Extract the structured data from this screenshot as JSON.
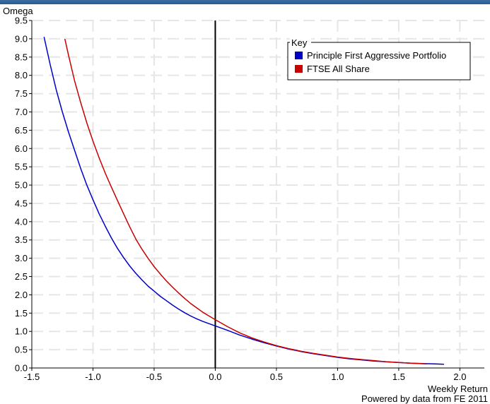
{
  "chart_data": {
    "type": "line",
    "xlabel": "Weekly Return",
    "ylabel": "Omega",
    "xlim": [
      -1.5,
      2.2
    ],
    "ylim": [
      0.0,
      9.5
    ],
    "x_ticks": [
      "-1.5",
      "-1.0",
      "-0.5",
      "0.0",
      "0.5",
      "1.0",
      "1.5",
      "2.0"
    ],
    "y_ticks": [
      "0.0",
      "0.5",
      "1.0",
      "1.5",
      "2.0",
      "2.5",
      "3.0",
      "3.5",
      "4.0",
      "4.5",
      "5.0",
      "5.5",
      "6.0",
      "6.5",
      "7.0",
      "7.5",
      "8.0",
      "8.5",
      "9.0",
      "9.5"
    ],
    "grid": true,
    "legend": {
      "title": "Key",
      "placement": "top-right"
    },
    "series": [
      {
        "name": "Principle First Aggressive Portfolio",
        "color": "#0000c8",
        "points": [
          [
            -1.4,
            9.05
          ],
          [
            -1.35,
            8.3
          ],
          [
            -1.3,
            7.6
          ],
          [
            -1.25,
            7.0
          ],
          [
            -1.2,
            6.45
          ],
          [
            -1.15,
            5.95
          ],
          [
            -1.1,
            5.45
          ],
          [
            -1.05,
            5.0
          ],
          [
            -1.0,
            4.6
          ],
          [
            -0.95,
            4.22
          ],
          [
            -0.9,
            3.88
          ],
          [
            -0.85,
            3.56
          ],
          [
            -0.8,
            3.27
          ],
          [
            -0.75,
            3.02
          ],
          [
            -0.7,
            2.79
          ],
          [
            -0.65,
            2.59
          ],
          [
            -0.6,
            2.41
          ],
          [
            -0.55,
            2.24
          ],
          [
            -0.5,
            2.1
          ],
          [
            -0.45,
            1.96
          ],
          [
            -0.4,
            1.84
          ],
          [
            -0.35,
            1.72
          ],
          [
            -0.3,
            1.61
          ],
          [
            -0.25,
            1.51
          ],
          [
            -0.2,
            1.42
          ],
          [
            -0.15,
            1.34
          ],
          [
            -0.1,
            1.27
          ],
          [
            -0.05,
            1.21
          ],
          [
            0.0,
            1.15
          ],
          [
            0.1,
            1.03
          ],
          [
            0.2,
            0.9
          ],
          [
            0.3,
            0.79
          ],
          [
            0.4,
            0.69
          ],
          [
            0.5,
            0.6
          ],
          [
            0.6,
            0.52
          ],
          [
            0.7,
            0.45
          ],
          [
            0.8,
            0.39
          ],
          [
            0.9,
            0.34
          ],
          [
            1.0,
            0.29
          ],
          [
            1.1,
            0.25
          ],
          [
            1.2,
            0.22
          ],
          [
            1.3,
            0.19
          ],
          [
            1.4,
            0.17
          ],
          [
            1.5,
            0.15
          ],
          [
            1.6,
            0.13
          ],
          [
            1.7,
            0.12
          ],
          [
            1.8,
            0.11
          ],
          [
            1.87,
            0.1
          ]
        ]
      },
      {
        "name": "FTSE All Share",
        "color": "#c80000",
        "points": [
          [
            -1.23,
            9.0
          ],
          [
            -1.2,
            8.55
          ],
          [
            -1.15,
            7.85
          ],
          [
            -1.1,
            7.25
          ],
          [
            -1.05,
            6.7
          ],
          [
            -1.0,
            6.2
          ],
          [
            -0.95,
            5.75
          ],
          [
            -0.9,
            5.33
          ],
          [
            -0.85,
            4.95
          ],
          [
            -0.8,
            4.58
          ],
          [
            -0.75,
            4.22
          ],
          [
            -0.7,
            3.86
          ],
          [
            -0.65,
            3.53
          ],
          [
            -0.6,
            3.25
          ],
          [
            -0.55,
            3.0
          ],
          [
            -0.5,
            2.77
          ],
          [
            -0.45,
            2.57
          ],
          [
            -0.4,
            2.38
          ],
          [
            -0.35,
            2.21
          ],
          [
            -0.3,
            2.05
          ],
          [
            -0.25,
            1.9
          ],
          [
            -0.2,
            1.76
          ],
          [
            -0.15,
            1.64
          ],
          [
            -0.1,
            1.52
          ],
          [
            -0.05,
            1.42
          ],
          [
            0.0,
            1.32
          ],
          [
            0.1,
            1.13
          ],
          [
            0.2,
            0.96
          ],
          [
            0.3,
            0.82
          ],
          [
            0.4,
            0.71
          ],
          [
            0.5,
            0.61
          ],
          [
            0.6,
            0.53
          ],
          [
            0.7,
            0.46
          ],
          [
            0.8,
            0.4
          ],
          [
            0.9,
            0.35
          ],
          [
            1.0,
            0.3
          ],
          [
            1.1,
            0.26
          ],
          [
            1.2,
            0.23
          ],
          [
            1.3,
            0.2
          ],
          [
            1.4,
            0.17
          ],
          [
            1.5,
            0.15
          ],
          [
            1.6,
            0.13
          ],
          [
            1.73,
            0.11
          ]
        ]
      }
    ]
  },
  "footer": {
    "credit": "Powered by data from FE 2011"
  }
}
